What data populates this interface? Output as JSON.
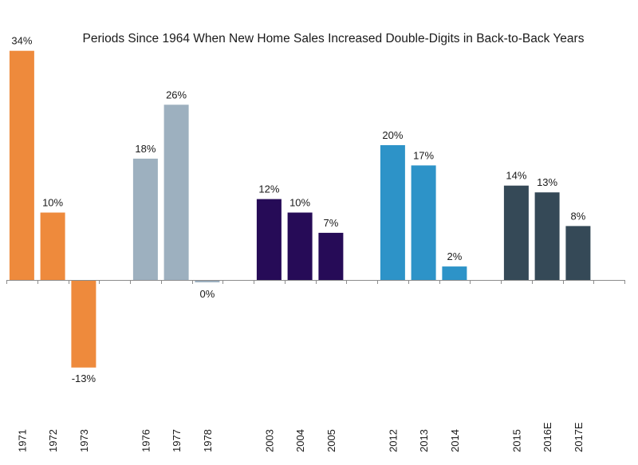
{
  "chart_data": {
    "type": "bar",
    "title": "Periods Since 1964 When New Home Sales Increased Double-Digits in Back-to-Back Years",
    "xlabel": "",
    "ylabel": "",
    "ylim": [
      -17,
      36
    ],
    "grid": false,
    "legend": "none",
    "groups": [
      {
        "name": "1971-1973",
        "color": "#EE8A3C",
        "categories": [
          "1971",
          "1972",
          "1973"
        ],
        "values": [
          34,
          10,
          -13
        ],
        "labels": [
          "34%",
          "10%",
          "-13%"
        ]
      },
      {
        "name": "1976-1978",
        "color": "#9DB0BF",
        "categories": [
          "1976",
          "1977",
          "1978"
        ],
        "values": [
          18,
          26,
          0
        ],
        "labels": [
          "18%",
          "26%",
          "0%"
        ]
      },
      {
        "name": "2003-2005",
        "color": "#260B57",
        "categories": [
          "2003",
          "2004",
          "2005"
        ],
        "values": [
          12,
          10,
          7
        ],
        "labels": [
          "12%",
          "10%",
          "7%"
        ]
      },
      {
        "name": "2012-2014",
        "color": "#2D93C8",
        "categories": [
          "2012",
          "2013",
          "2014"
        ],
        "values": [
          20,
          17,
          2
        ],
        "labels": [
          "20%",
          "17%",
          "2%"
        ]
      },
      {
        "name": "2015-2017E",
        "color": "#354957",
        "categories": [
          "2015",
          "2016E",
          "2017E"
        ],
        "values": [
          14,
          13,
          8
        ],
        "labels": [
          "14%",
          "13%",
          "8%"
        ]
      }
    ]
  }
}
